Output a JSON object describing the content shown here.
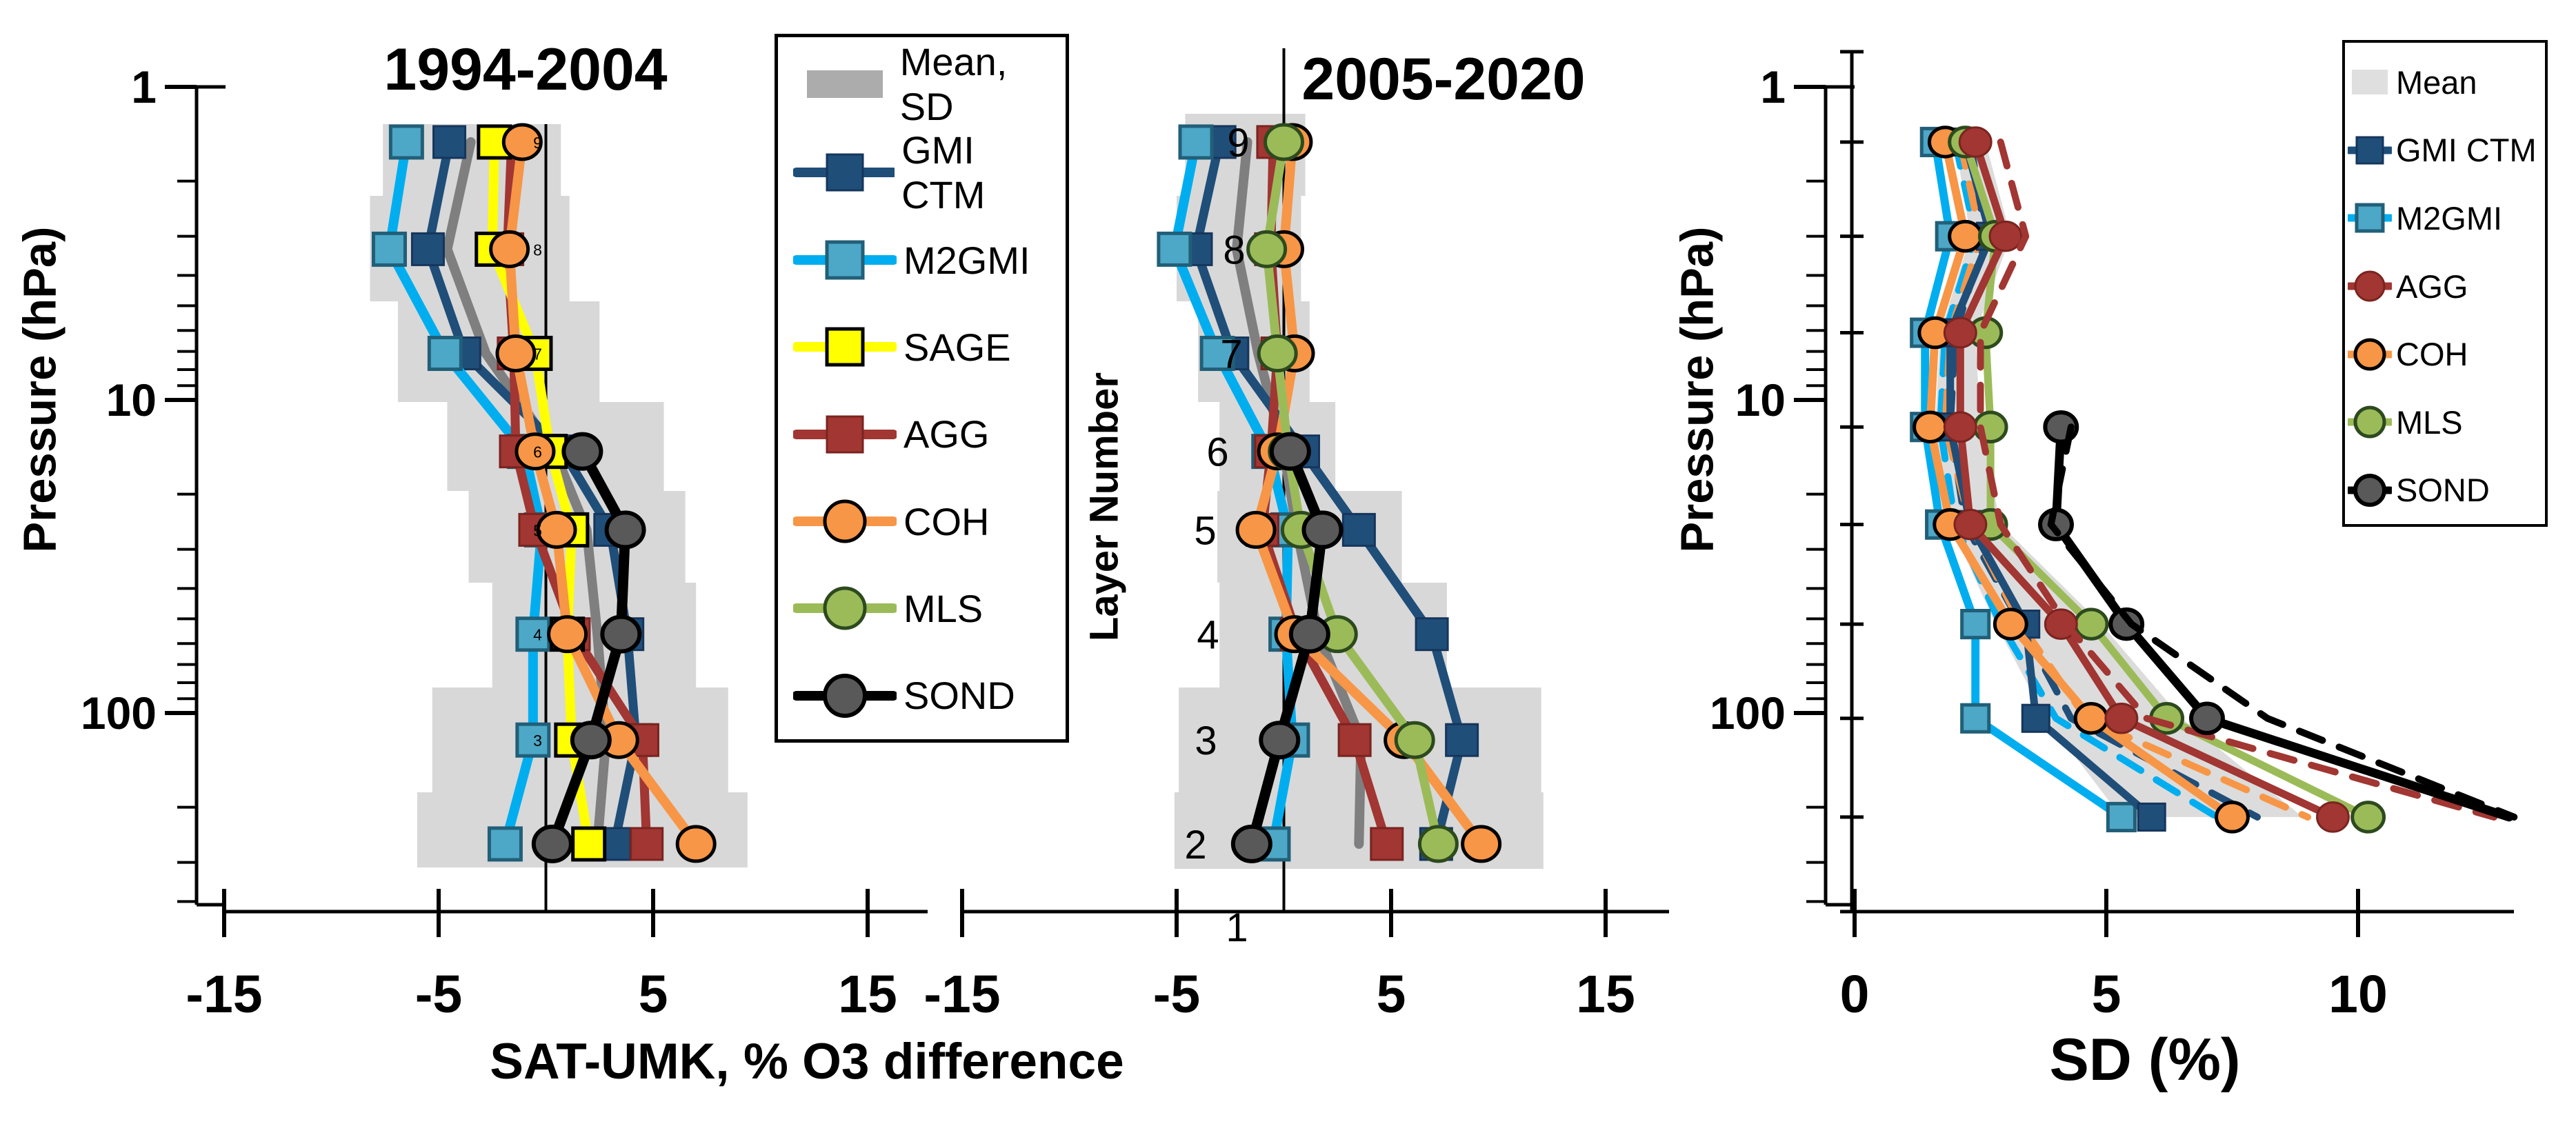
{
  "page": {
    "background": "#ffffff"
  },
  "labels": {
    "title_left": "1994-2004",
    "title_middle": "2005-2020",
    "x_axis_label_left": "SAT-UMK, % O3 difference",
    "x_axis_label_right": "SD (%)",
    "pressure_axis_label_left": "Pressure (hPa)",
    "pressure_axis_label_right": "Pressure (hPa)",
    "layer_axis_label": "Layer Number",
    "bottom_layer_label": "1"
  },
  "colors": {
    "band": "#D8D8D8",
    "band_right": "#DCDCDC",
    "mean_line": "#7F7F7F",
    "gmi": "#1F4E79",
    "m2gmi_line": "#00AEEF",
    "m2gmi_fill": "#4DA7C7",
    "m2gmi_edge": "#215F78",
    "sage": "#FFFF00",
    "agg": "#A13632",
    "agg_edge": "#7A2420",
    "coh": "#F79646",
    "mls": "#9BBB59",
    "mls_edge": "#2D4A1E",
    "sond_fill": "#595959",
    "black": "#000000",
    "legend_mean_left": "#ACACAC",
    "legend_mean_right": "#DFDFDF"
  },
  "y_axis": {
    "tick_labels": [
      "1",
      "10",
      "100"
    ],
    "tick_values": [
      1,
      10,
      100
    ],
    "minor_ticks": [
      2,
      3,
      4,
      5,
      6,
      7,
      8,
      9,
      20,
      30,
      40,
      50,
      60,
      70,
      80,
      90,
      200,
      300,
      400
    ]
  },
  "chart_data": [
    {
      "type": "line",
      "title": "1994-2004",
      "xlabel": "SAT-UMK, % O3 difference",
      "ylabel": "Pressure (hPa)",
      "x_ticks": [
        -15,
        -5,
        5,
        15
      ],
      "y_scale": "log",
      "layer_numbers": [
        9,
        8,
        7,
        6,
        5,
        4,
        3,
        2
      ],
      "small_layer_labels": [
        "9",
        "8",
        "7",
        "6",
        "5",
        "4",
        "3"
      ],
      "pressures_hpa": [
        1.5,
        3.3,
        7.1,
        14.6,
        26,
        56,
        122,
        262
      ],
      "sd_band": {
        "style": "step",
        "lo": [
          -7.6,
          -8.2,
          -6.9,
          -4.6,
          -3.6,
          -2.5,
          -5.3,
          -6.0
        ],
        "hi": [
          0.7,
          1.1,
          2.5,
          5.5,
          6.5,
          7.0,
          8.5,
          9.4
        ]
      },
      "series": [
        {
          "id": "mean",
          "name": "Mean, SD",
          "marker": "none",
          "values": [
            -3.5,
            -4.6,
            -2.8,
            0.4,
            1.9,
            2.4,
            2.8,
            2.4
          ]
        },
        {
          "id": "gmi",
          "name": "GMI CTM",
          "marker": "square",
          "values": [
            -4.5,
            -5.5,
            -3.8,
            0.8,
            3.0,
            3.8,
            4.2,
            3.2
          ]
        },
        {
          "id": "m2gmi",
          "name": "M2GMI",
          "marker": "square",
          "values": [
            -6.5,
            -7.3,
            -4.7,
            -1.0,
            -0.2,
            -0.6,
            -0.6,
            -1.9
          ]
        },
        {
          "id": "agg",
          "name": "AGG",
          "marker": "square",
          "values": [
            -1.6,
            -1.8,
            -1.5,
            -1.4,
            -0.5,
            1.3,
            4.5,
            4.7
          ]
        },
        {
          "id": "sage",
          "name": "SAGE",
          "marker": "square",
          "values": [
            -2.4,
            -2.5,
            -0.5,
            0.2,
            1.2,
            1.0,
            1.2,
            2.0
          ]
        },
        {
          "id": "coh",
          "name": "COH",
          "marker": "circle",
          "values": [
            -1.1,
            -1.7,
            -1.4,
            -0.5,
            0.5,
            1.0,
            3.4,
            7.0
          ]
        },
        {
          "id": "sond",
          "name": "SOND",
          "marker": "circle",
          "values": [
            null,
            null,
            null,
            1.7,
            3.7,
            3.5,
            2.1,
            0.3
          ]
        }
      ]
    },
    {
      "type": "line",
      "title": "2005-2020",
      "xlabel": "SAT-UMK, % O3 difference",
      "ylabel": "Layer Number",
      "x_ticks": [
        -15,
        -5,
        5,
        15
      ],
      "y_scale": "log",
      "layer_numbers": [
        9,
        8,
        7,
        6,
        5,
        4,
        3,
        2
      ],
      "pressures_hpa": [
        1.5,
        3.3,
        7.1,
        14.6,
        26,
        56,
        122,
        262
      ],
      "sd_band": {
        "style": "step",
        "lo": [
          -4.6,
          -5.0,
          -4.0,
          -3.0,
          -3.1,
          -3.0,
          -4.9,
          -5.1
        ],
        "hi": [
          1.0,
          0.8,
          1.2,
          2.4,
          5.5,
          7.6,
          12.0,
          12.1
        ]
      },
      "series": [
        {
          "id": "mean",
          "name": "Mean",
          "marker": "none",
          "values": [
            -1.7,
            -2.2,
            -1.2,
            0.0,
            0.6,
            1.6,
            3.6,
            3.5
          ]
        },
        {
          "id": "gmi",
          "name": "GMI CTM",
          "marker": "square",
          "values": [
            -3.0,
            -4.1,
            -2.4,
            0.9,
            3.5,
            6.9,
            8.3,
            7.1
          ]
        },
        {
          "id": "m2gmi",
          "name": "M2GMI",
          "marker": "square",
          "values": [
            -4.1,
            -5.1,
            -3.1,
            -0.7,
            0.2,
            0.1,
            0.4,
            -0.5
          ]
        },
        {
          "id": "agg",
          "name": "AGG",
          "marker": "square",
          "values": [
            -0.5,
            -0.6,
            -0.3,
            -0.6,
            -1.0,
            0.6,
            3.3,
            4.8
          ]
        },
        {
          "id": "coh",
          "name": "COH",
          "marker": "circle",
          "values": [
            0.4,
            0.0,
            0.5,
            -0.3,
            -1.3,
            0.5,
            5.6,
            9.2
          ]
        },
        {
          "id": "mls",
          "name": "MLS",
          "marker": "circle",
          "values": [
            0.0,
            -0.8,
            -0.3,
            0.2,
            0.8,
            2.5,
            6.1,
            7.2
          ]
        },
        {
          "id": "sond",
          "name": "SOND",
          "marker": "circle",
          "values": [
            null,
            null,
            null,
            0.3,
            1.8,
            1.2,
            -0.2,
            -1.5
          ]
        }
      ]
    },
    {
      "type": "line",
      "title": "",
      "xlabel": "SD (%)",
      "ylabel": "Pressure (hPa)",
      "x_ticks": [
        0,
        5,
        10
      ],
      "y_scale": "log",
      "layer_numbers": [
        9,
        8,
        7,
        6,
        5,
        4,
        3,
        2
      ],
      "pressures_hpa": [
        1.5,
        3.0,
        6.1,
        12.2,
        25,
        52,
        104,
        215
      ],
      "sd_band": {
        "style": "poly",
        "lo": [
          2.0,
          2.3,
          1.7,
          1.6,
          1.9,
          2.8,
          3.8,
          5.3
        ],
        "hi": [
          2.6,
          3.1,
          2.4,
          2.5,
          2.9,
          4.9,
          6.5,
          8.9
        ]
      },
      "series": [
        {
          "id": "m2gmi_d",
          "name": "M2GMI dashed",
          "marker": "none",
          "dash": true,
          "values": [
            2.0,
            2.4,
            1.8,
            1.7,
            2.0,
            2.9,
            4.0,
            7.2
          ]
        },
        {
          "id": "gmi_d",
          "name": "GMI CTM dashed",
          "marker": "none",
          "dash": true,
          "values": [
            2.3,
            2.6,
            2.0,
            1.9,
            2.2,
            3.3,
            4.3,
            8.0
          ]
        },
        {
          "id": "coh_d",
          "name": "COH dashed",
          "marker": "none",
          "dash": true,
          "values": [
            2.1,
            2.5,
            1.9,
            1.8,
            2.3,
            3.3,
            4.6,
            9.0
          ]
        },
        {
          "id": "m2gmi",
          "name": "M2GMI",
          "marker": "square",
          "values": [
            1.6,
            1.9,
            1.4,
            1.4,
            1.7,
            2.4,
            2.4,
            5.3
          ]
        },
        {
          "id": "gmi",
          "name": "GMI CTM",
          "marker": "square",
          "values": [
            2.2,
            2.7,
            1.9,
            1.9,
            2.3,
            3.4,
            3.6,
            5.9
          ]
        },
        {
          "id": "coh",
          "name": "COH",
          "marker": "circle",
          "values": [
            1.8,
            2.2,
            1.6,
            1.5,
            1.9,
            3.1,
            4.7,
            7.5
          ]
        },
        {
          "id": "mls",
          "name": "MLS",
          "marker": "circle",
          "values": [
            2.2,
            2.8,
            2.6,
            2.7,
            2.7,
            4.7,
            6.2,
            10.2
          ]
        },
        {
          "id": "agg",
          "name": "AGG",
          "marker": "circle",
          "values": [
            2.4,
            3.0,
            2.1,
            2.1,
            2.3,
            4.1,
            5.3,
            9.5
          ]
        },
        {
          "id": "agg_d",
          "name": "AGG dashed",
          "marker": "none",
          "dash": true,
          "values": [
            2.9,
            3.4,
            2.5,
            2.5,
            2.9,
            4.2,
            5.8,
            12.7
          ]
        },
        {
          "id": "sond",
          "name": "SOND",
          "marker": "circle",
          "skip_last_marker": true,
          "values": [
            null,
            null,
            null,
            4.1,
            4.0,
            5.4,
            7.0,
            13.0
          ]
        },
        {
          "id": "sond_d",
          "name": "SOND dashed",
          "marker": "none",
          "dash": true,
          "values": [
            null,
            null,
            null,
            4.3,
            3.9,
            5.5,
            8.2,
            13.1
          ]
        }
      ]
    }
  ],
  "legend_left": {
    "items": [
      {
        "label": "Mean, SD",
        "kind": "patch",
        "ref": "mean_left"
      },
      {
        "label": "GMI CTM",
        "kind": "square",
        "ref": "gmi"
      },
      {
        "label": "M2GMI",
        "kind": "square",
        "ref": "m2gmi"
      },
      {
        "label": "SAGE",
        "kind": "square",
        "ref": "sage"
      },
      {
        "label": "AGG",
        "kind": "square",
        "ref": "agg"
      },
      {
        "label": "COH",
        "kind": "circle",
        "ref": "coh"
      },
      {
        "label": "MLS",
        "kind": "circle",
        "ref": "mls"
      },
      {
        "label": "SOND",
        "kind": "circle",
        "ref": "sond"
      }
    ]
  },
  "legend_right": {
    "items": [
      {
        "label": "Mean",
        "kind": "patch",
        "ref": "mean_right"
      },
      {
        "label": "GMI CTM",
        "kind": "square",
        "ref": "gmi"
      },
      {
        "label": "M2GMI",
        "kind": "square",
        "ref": "m2gmi"
      },
      {
        "label": "AGG",
        "kind": "circle",
        "ref": "agg"
      },
      {
        "label": "COH",
        "kind": "circle",
        "ref": "coh"
      },
      {
        "label": "MLS",
        "kind": "circle",
        "ref": "mls"
      },
      {
        "label": "SOND",
        "kind": "circle",
        "ref": "sond"
      }
    ]
  }
}
